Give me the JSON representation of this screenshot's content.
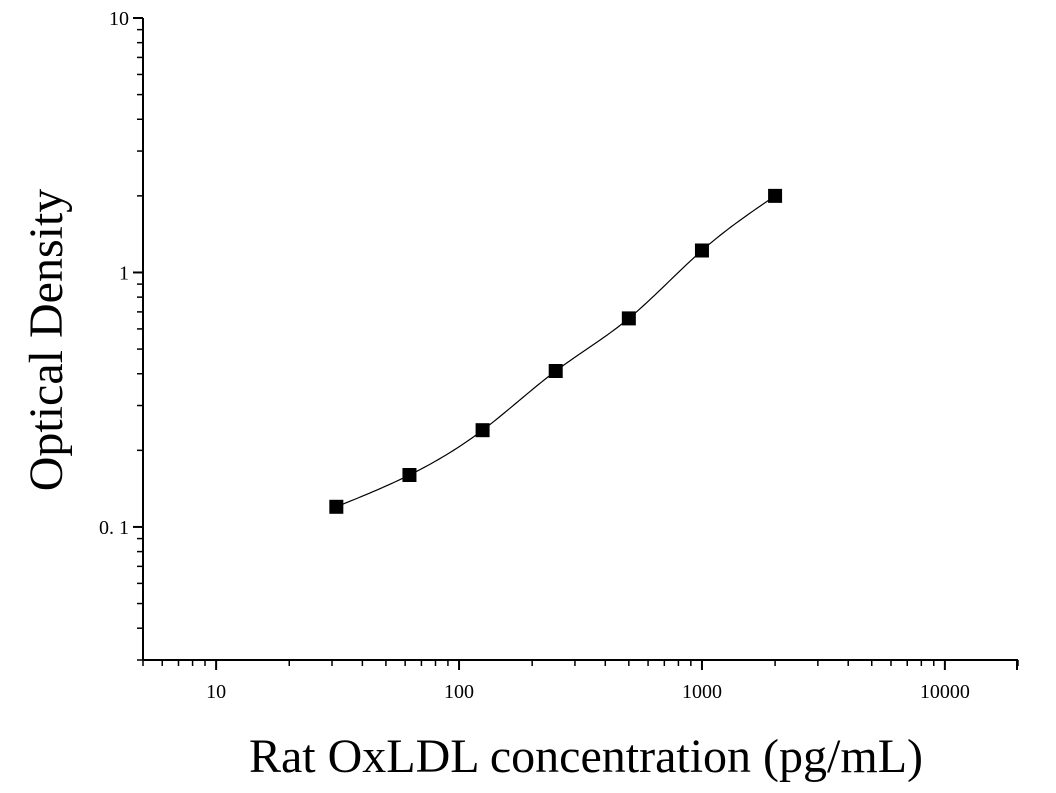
{
  "chart_data": {
    "type": "scatter",
    "title": "",
    "xlabel": "Rat OxLDL concentration (pg/mL)",
    "ylabel": "Optical Density",
    "x_scale": "log",
    "y_scale": "log",
    "xlim": [
      5,
      20000
    ],
    "ylim": [
      0.03,
      10
    ],
    "x_ticks": [
      10,
      100,
      1000,
      10000
    ],
    "x_tick_labels": [
      "10",
      "100",
      "1000",
      "10000"
    ],
    "y_ticks": [
      0.1,
      1,
      10
    ],
    "y_tick_labels": [
      "0. 1",
      "1",
      "10"
    ],
    "grid": false,
    "legend": "none",
    "series": [
      {
        "x": [
          31.25,
          62.5,
          125,
          250,
          500,
          1000,
          2000
        ],
        "y": [
          0.12,
          0.16,
          0.24,
          0.41,
          0.66,
          1.22,
          2.0
        ],
        "marker": "square",
        "color": "#000000",
        "fit_curve": true
      }
    ]
  }
}
